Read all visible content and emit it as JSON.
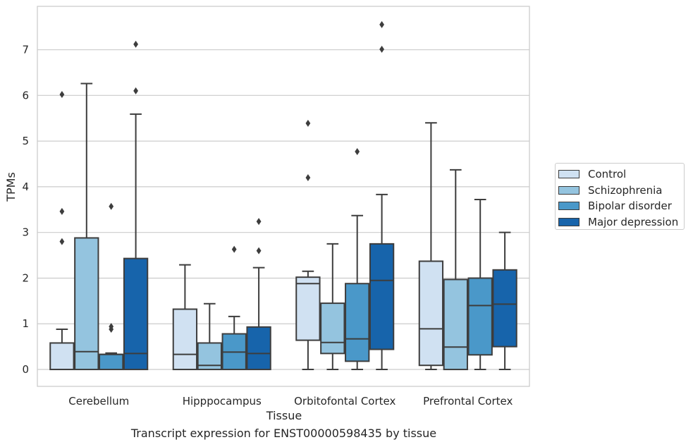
{
  "chart_data": {
    "type": "box",
    "caption": "Transcript expression for ENST00000598435 by tissue",
    "xlabel": "Tissue",
    "ylabel": "TPMs",
    "ylim": [
      -0.37,
      7.95
    ],
    "yticks": [
      0,
      1,
      2,
      3,
      4,
      5,
      6,
      7
    ],
    "grid": true,
    "legend_position": "right",
    "categories": [
      "Cerebellum",
      "Hipppocampus",
      "Orbitofontal Cortex",
      "Prefrontal Cortex"
    ],
    "series": [
      {
        "name": "Control",
        "color": "#d0e1f2",
        "boxes": [
          {
            "whislo": 0,
            "q1": 0,
            "med": 0,
            "q3": 0.58,
            "whishi": 0.88,
            "fliers": [
              2.8,
              3.46,
              6.02
            ]
          },
          {
            "whislo": 0,
            "q1": 0,
            "med": 0.33,
            "q3": 1.32,
            "whishi": 2.29,
            "fliers": []
          },
          {
            "whislo": 0,
            "q1": 0.64,
            "med": 1.88,
            "q3": 2.02,
            "whishi": 2.15,
            "fliers": [
              4.2,
              5.39
            ]
          },
          {
            "whislo": 0,
            "q1": 0.09,
            "med": 0.89,
            "q3": 2.37,
            "whishi": 5.4,
            "fliers": []
          }
        ]
      },
      {
        "name": "Schizophrenia",
        "color": "#94c4df",
        "boxes": [
          {
            "whislo": 0,
            "q1": 0,
            "med": 0.39,
            "q3": 2.88,
            "whishi": 6.26,
            "fliers": []
          },
          {
            "whislo": 0,
            "q1": 0,
            "med": 0.09,
            "q3": 0.58,
            "whishi": 1.44,
            "fliers": []
          },
          {
            "whislo": 0,
            "q1": 0.35,
            "med": 0.59,
            "q3": 1.45,
            "whishi": 2.75,
            "fliers": []
          },
          {
            "whislo": 0,
            "q1": 0,
            "med": 0.49,
            "q3": 1.97,
            "whishi": 4.37,
            "fliers": []
          }
        ]
      },
      {
        "name": "Bipolar disorder",
        "color": "#4a98c9",
        "boxes": [
          {
            "whislo": 0,
            "q1": 0,
            "med": 0.33,
            "q3": 0.33,
            "whishi": 0.36,
            "fliers": [
              0.88,
              0.94,
              3.57
            ]
          },
          {
            "whislo": 0,
            "q1": 0,
            "med": 0.38,
            "q3": 0.78,
            "whishi": 1.16,
            "fliers": [
              2.63
            ]
          },
          {
            "whislo": 0,
            "q1": 0.18,
            "med": 0.67,
            "q3": 1.88,
            "whishi": 3.37,
            "fliers": [
              4.77
            ]
          },
          {
            "whislo": 0,
            "q1": 0.32,
            "med": 1.4,
            "q3": 2.0,
            "whishi": 3.72,
            "fliers": []
          }
        ]
      },
      {
        "name": "Major depression",
        "color": "#1764ab",
        "boxes": [
          {
            "whislo": 0,
            "q1": 0,
            "med": 0.35,
            "q3": 2.43,
            "whishi": 5.59,
            "fliers": [
              6.1,
              7.12
            ]
          },
          {
            "whislo": 0,
            "q1": 0,
            "med": 0.35,
            "q3": 0.93,
            "whishi": 2.23,
            "fliers": [
              2.6,
              3.24
            ]
          },
          {
            "whislo": 0,
            "q1": 0.44,
            "med": 1.95,
            "q3": 2.75,
            "whishi": 3.83,
            "fliers": [
              7.01,
              7.55
            ]
          },
          {
            "whislo": 0,
            "q1": 0.5,
            "med": 1.43,
            "q3": 2.18,
            "whishi": 3.0,
            "fliers": []
          }
        ]
      }
    ]
  }
}
